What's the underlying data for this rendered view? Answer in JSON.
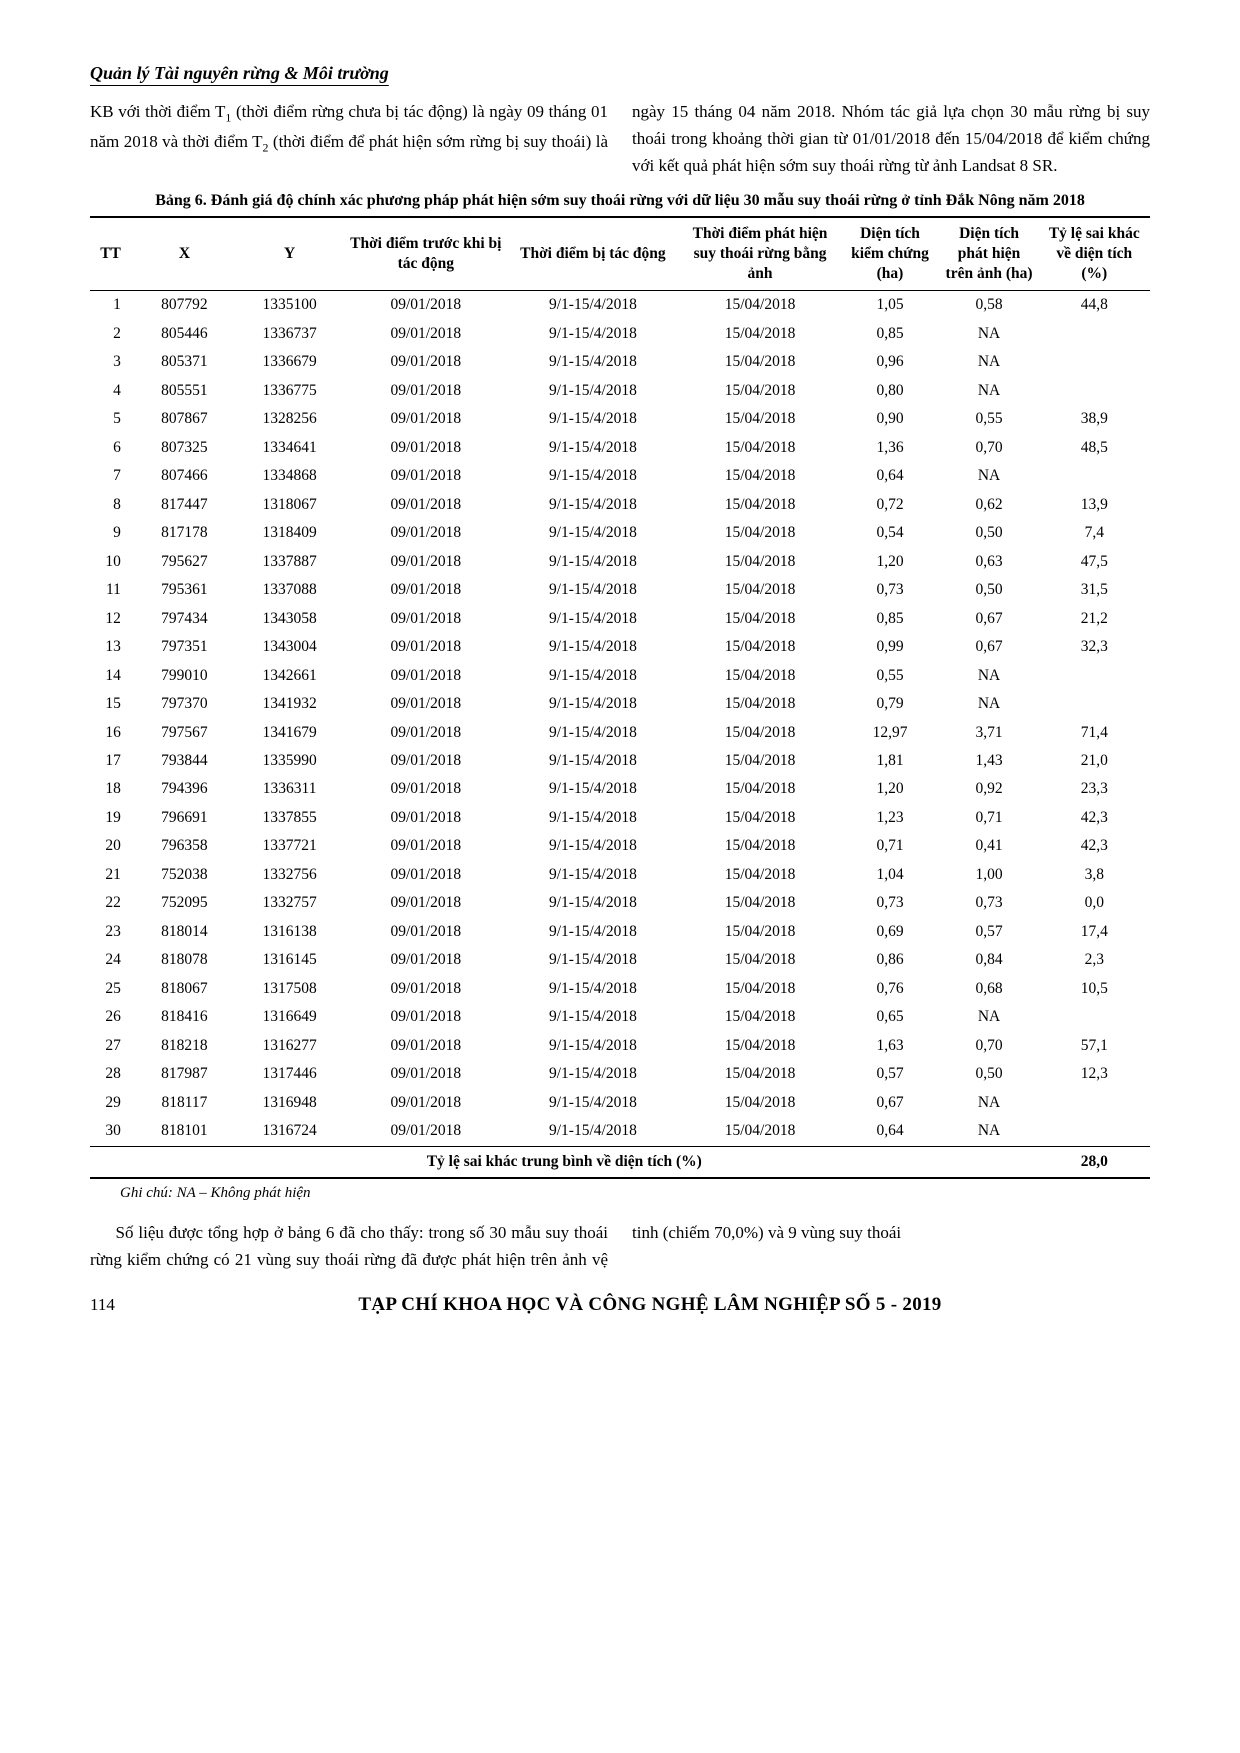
{
  "header": {
    "title": "Quản lý Tài nguyên rừng & Môi trường"
  },
  "intro": {
    "para1_a": "KB với thời điểm T",
    "para1_sub1": "1",
    "para1_b": " (thời điểm rừng chưa bị tác động) là ngày 09 tháng 01 năm 2018 và thời điểm T",
    "para1_sub2": "2",
    "para1_c": " (thời điểm để phát hiện sớm rừng bị suy thoái) là ngày 15 tháng 04 năm 2018.",
    "para2": "Nhóm tác giả lựa chọn 30 mẫu rừng bị suy thoái trong khoảng thời gian từ 01/01/2018 đến 15/04/2018 để kiểm chứng với kết quả phát hiện sớm suy thoái rừng từ ảnh Landsat 8 SR."
  },
  "table_caption": "Bảng 6. Đánh giá độ chính xác phương pháp phát hiện sớm suy thoái rừng với dữ liệu 30 mẫu suy thoái rừng ở tỉnh Đắk Nông năm 2018",
  "columns": {
    "tt": "TT",
    "x": "X",
    "y": "Y",
    "d1": "Thời điểm trước khi bị tác động",
    "d2": "Thời điểm bị tác động",
    "d3": "Thời điểm phát hiện suy thoái rừng bằng ảnh",
    "a1": "Diện tích kiểm chứng (ha)",
    "a2": "Diện tích phát hiện trên ảnh (ha)",
    "pct": "Tỷ lệ sai khác về diện tích (%)"
  },
  "rows": [
    [
      "1",
      "807792",
      "1335100",
      "09/01/2018",
      "9/1-15/4/2018",
      "15/04/2018",
      "1,05",
      "0,58",
      "44,8"
    ],
    [
      "2",
      "805446",
      "1336737",
      "09/01/2018",
      "9/1-15/4/2018",
      "15/04/2018",
      "0,85",
      "NA",
      ""
    ],
    [
      "3",
      "805371",
      "1336679",
      "09/01/2018",
      "9/1-15/4/2018",
      "15/04/2018",
      "0,96",
      "NA",
      ""
    ],
    [
      "4",
      "805551",
      "1336775",
      "09/01/2018",
      "9/1-15/4/2018",
      "15/04/2018",
      "0,80",
      "NA",
      ""
    ],
    [
      "5",
      "807867",
      "1328256",
      "09/01/2018",
      "9/1-15/4/2018",
      "15/04/2018",
      "0,90",
      "0,55",
      "38,9"
    ],
    [
      "6",
      "807325",
      "1334641",
      "09/01/2018",
      "9/1-15/4/2018",
      "15/04/2018",
      "1,36",
      "0,70",
      "48,5"
    ],
    [
      "7",
      "807466",
      "1334868",
      "09/01/2018",
      "9/1-15/4/2018",
      "15/04/2018",
      "0,64",
      "NA",
      ""
    ],
    [
      "8",
      "817447",
      "1318067",
      "09/01/2018",
      "9/1-15/4/2018",
      "15/04/2018",
      "0,72",
      "0,62",
      "13,9"
    ],
    [
      "9",
      "817178",
      "1318409",
      "09/01/2018",
      "9/1-15/4/2018",
      "15/04/2018",
      "0,54",
      "0,50",
      "7,4"
    ],
    [
      "10",
      "795627",
      "1337887",
      "09/01/2018",
      "9/1-15/4/2018",
      "15/04/2018",
      "1,20",
      "0,63",
      "47,5"
    ],
    [
      "11",
      "795361",
      "1337088",
      "09/01/2018",
      "9/1-15/4/2018",
      "15/04/2018",
      "0,73",
      "0,50",
      "31,5"
    ],
    [
      "12",
      "797434",
      "1343058",
      "09/01/2018",
      "9/1-15/4/2018",
      "15/04/2018",
      "0,85",
      "0,67",
      "21,2"
    ],
    [
      "13",
      "797351",
      "1343004",
      "09/01/2018",
      "9/1-15/4/2018",
      "15/04/2018",
      "0,99",
      "0,67",
      "32,3"
    ],
    [
      "14",
      "799010",
      "1342661",
      "09/01/2018",
      "9/1-15/4/2018",
      "15/04/2018",
      "0,55",
      "NA",
      ""
    ],
    [
      "15",
      "797370",
      "1341932",
      "09/01/2018",
      "9/1-15/4/2018",
      "15/04/2018",
      "0,79",
      "NA",
      ""
    ],
    [
      "16",
      "797567",
      "1341679",
      "09/01/2018",
      "9/1-15/4/2018",
      "15/04/2018",
      "12,97",
      "3,71",
      "71,4"
    ],
    [
      "17",
      "793844",
      "1335990",
      "09/01/2018",
      "9/1-15/4/2018",
      "15/04/2018",
      "1,81",
      "1,43",
      "21,0"
    ],
    [
      "18",
      "794396",
      "1336311",
      "09/01/2018",
      "9/1-15/4/2018",
      "15/04/2018",
      "1,20",
      "0,92",
      "23,3"
    ],
    [
      "19",
      "796691",
      "1337855",
      "09/01/2018",
      "9/1-15/4/2018",
      "15/04/2018",
      "1,23",
      "0,71",
      "42,3"
    ],
    [
      "20",
      "796358",
      "1337721",
      "09/01/2018",
      "9/1-15/4/2018",
      "15/04/2018",
      "0,71",
      "0,41",
      "42,3"
    ],
    [
      "21",
      "752038",
      "1332756",
      "09/01/2018",
      "9/1-15/4/2018",
      "15/04/2018",
      "1,04",
      "1,00",
      "3,8"
    ],
    [
      "22",
      "752095",
      "1332757",
      "09/01/2018",
      "9/1-15/4/2018",
      "15/04/2018",
      "0,73",
      "0,73",
      "0,0"
    ],
    [
      "23",
      "818014",
      "1316138",
      "09/01/2018",
      "9/1-15/4/2018",
      "15/04/2018",
      "0,69",
      "0,57",
      "17,4"
    ],
    [
      "24",
      "818078",
      "1316145",
      "09/01/2018",
      "9/1-15/4/2018",
      "15/04/2018",
      "0,86",
      "0,84",
      "2,3"
    ],
    [
      "25",
      "818067",
      "1317508",
      "09/01/2018",
      "9/1-15/4/2018",
      "15/04/2018",
      "0,76",
      "0,68",
      "10,5"
    ],
    [
      "26",
      "818416",
      "1316649",
      "09/01/2018",
      "9/1-15/4/2018",
      "15/04/2018",
      "0,65",
      "NA",
      ""
    ],
    [
      "27",
      "818218",
      "1316277",
      "09/01/2018",
      "9/1-15/4/2018",
      "15/04/2018",
      "1,63",
      "0,70",
      "57,1"
    ],
    [
      "28",
      "817987",
      "1317446",
      "09/01/2018",
      "9/1-15/4/2018",
      "15/04/2018",
      "0,57",
      "0,50",
      "12,3"
    ],
    [
      "29",
      "818117",
      "1316948",
      "09/01/2018",
      "9/1-15/4/2018",
      "15/04/2018",
      "0,67",
      "NA",
      ""
    ],
    [
      "30",
      "818101",
      "1316724",
      "09/01/2018",
      "9/1-15/4/2018",
      "15/04/2018",
      "0,64",
      "NA",
      ""
    ]
  ],
  "summary": {
    "label": "Tỷ lệ sai khác trung bình về diện tích (%)",
    "value": "28,0"
  },
  "note": "Ghi chú: NA – Không phát hiện",
  "outro": {
    "para1": "Số liệu được tổng hợp ở bảng 6 đã cho thấy: trong số 30 mẫu suy thoái rừng kiểm chứng có",
    "para2": "21 vùng suy thoái rừng đã được phát hiện trên ảnh vệ tinh (chiếm 70,0%) và 9 vùng suy thoái"
  },
  "footer": {
    "page": "114",
    "journal": "TẠP CHÍ KHOA HỌC VÀ CÔNG NGHỆ LÂM NGHIỆP SỐ 5 - 2019"
  }
}
